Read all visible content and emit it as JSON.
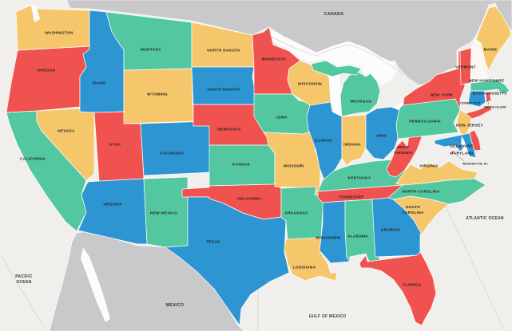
{
  "map": {
    "palette": {
      "red": "#f0534f",
      "teal": "#53c8a0",
      "blue": "#2d95d2",
      "yellow": "#f5c76a",
      "uncolored": "#faf7f4",
      "land": "#c9c9cc",
      "water": "#f0efeb",
      "lake": "#fcfcfc",
      "state_border": "#ffffff",
      "state_label": "#1f1f1f",
      "ocean_label": "#3a3a3a",
      "leader_line": "#555555",
      "graticule": "#d9d6d1"
    },
    "land_areas": [
      {
        "id": "canada",
        "label": "CANADA"
      },
      {
        "id": "mexico",
        "label": "MEXICO"
      }
    ],
    "ocean_labels": [
      {
        "id": "pacific-ocean",
        "lines": [
          "PACIFIC",
          "OCEAN"
        ]
      },
      {
        "id": "atlantic-ocean",
        "lines": [
          "ATLANTIC OCEAN"
        ]
      },
      {
        "id": "gulf-of-mexico",
        "lines": [
          "GULF OF MEXICO"
        ]
      }
    ],
    "states": [
      {
        "id": "california",
        "label": "CALIFORNIA",
        "color": "teal"
      },
      {
        "id": "oregon",
        "label": "OREGON",
        "color": "red"
      },
      {
        "id": "washington",
        "label": "WASHINGTON",
        "color": "yellow"
      },
      {
        "id": "nevada",
        "label": "NEVADA",
        "color": "yellow"
      },
      {
        "id": "idaho",
        "label": "IDAHO",
        "color": "blue"
      },
      {
        "id": "montana",
        "label": "MONTANA",
        "color": "teal"
      },
      {
        "id": "wyoming",
        "label": "WYOMING",
        "color": "yellow"
      },
      {
        "id": "utah",
        "label": "UTAH",
        "color": "red"
      },
      {
        "id": "colorado",
        "label": "COLORADO",
        "color": "blue"
      },
      {
        "id": "arizona",
        "label": "ARIZONA",
        "color": "blue"
      },
      {
        "id": "new-mexico",
        "label": "NEW MEXICO",
        "color": "teal"
      },
      {
        "id": "north-dakota",
        "label": "NORTH DAKOTA",
        "color": "yellow"
      },
      {
        "id": "south-dakota",
        "label": "SOUTH DAKOTA",
        "color": "blue"
      },
      {
        "id": "nebraska",
        "label": "NEBRASKA",
        "color": "red"
      },
      {
        "id": "kansas",
        "label": "KANSAS",
        "color": "teal"
      },
      {
        "id": "oklahoma",
        "label": "OKLAHOMA",
        "color": "red"
      },
      {
        "id": "texas",
        "label": "TEXAS",
        "color": "blue"
      },
      {
        "id": "minnesota",
        "label": "MINNESOTA",
        "color": "red"
      },
      {
        "id": "iowa",
        "label": "IOWA",
        "color": "teal"
      },
      {
        "id": "missouri",
        "label": "MISSOURI",
        "color": "yellow"
      },
      {
        "id": "arkansas",
        "label": "ARKANSAS",
        "color": "teal"
      },
      {
        "id": "louisiana",
        "label": "LOUISIANA",
        "color": "yellow"
      },
      {
        "id": "wisconsin",
        "label": "WISCONSIN",
        "color": "yellow"
      },
      {
        "id": "illinois",
        "label": "ILLINOIS",
        "color": "blue"
      },
      {
        "id": "michigan",
        "label": "MICHIGAN",
        "color": "teal"
      },
      {
        "id": "indiana",
        "label": "INDIANA",
        "color": "yellow"
      },
      {
        "id": "ohio",
        "label": "OHIO",
        "color": "blue"
      },
      {
        "id": "kentucky",
        "label": "KENTUCKY",
        "color": "teal"
      },
      {
        "id": "tennessee",
        "label": "TENNESSEE",
        "color": "red"
      },
      {
        "id": "mississippi",
        "label": "MISSISSIPPI",
        "color": "blue"
      },
      {
        "id": "alabama",
        "label": "ALABAMA",
        "color": "teal"
      },
      {
        "id": "georgia",
        "label": "GEORGIA",
        "color": "blue"
      },
      {
        "id": "florida",
        "label": "FLORIDA",
        "color": "red"
      },
      {
        "id": "south-carolina",
        "lines": [
          "SOUTH",
          "CAROLINA"
        ],
        "color": "yellow"
      },
      {
        "id": "north-carolina",
        "label": "NORTH CAROLINA",
        "color": "teal"
      },
      {
        "id": "virginia",
        "label": "VIRGINIA",
        "color": "yellow"
      },
      {
        "id": "west-virginia",
        "lines": [
          "WEST",
          "VIRGINIA"
        ],
        "color": "red"
      },
      {
        "id": "new-york",
        "label": "NEW YORK",
        "color": "red"
      },
      {
        "id": "pennsylvania",
        "label": "PENNSYLVANIA",
        "color": "teal"
      },
      {
        "id": "vermont",
        "label": "VERMONT",
        "color": "red"
      },
      {
        "id": "new-hampshire",
        "label": "NEW HAMPSHIRE",
        "color": "uncolored"
      },
      {
        "id": "maine",
        "label": "MAINE",
        "color": "yellow"
      },
      {
        "id": "massachusetts",
        "label": "MASSACHUSETTS",
        "color": "teal"
      },
      {
        "id": "connecticut",
        "label": "CONNECTICUT",
        "color": "blue"
      },
      {
        "id": "rhode-island",
        "label": "RHODE ISLAND",
        "color": "red"
      },
      {
        "id": "new-jersey",
        "label": "NEW JERSEY",
        "color": "yellow"
      },
      {
        "id": "delaware",
        "label": "DELAWARE",
        "color": "red"
      },
      {
        "id": "maryland",
        "label": "MARYLAND",
        "color": "blue"
      },
      {
        "id": "washington-dc",
        "label": "WASHINGTON, DC",
        "color": "red"
      }
    ]
  }
}
